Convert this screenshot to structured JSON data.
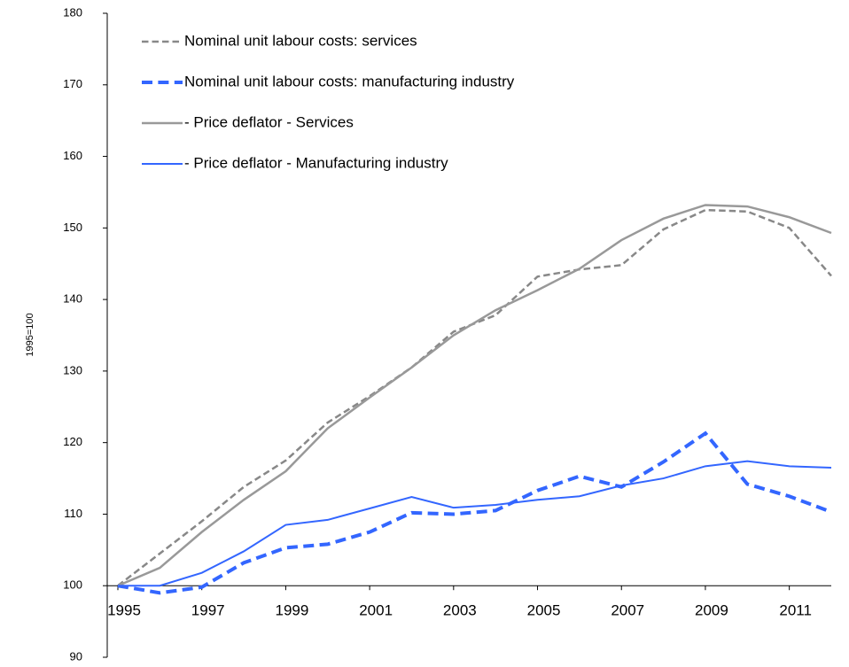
{
  "chart_data": {
    "type": "line",
    "y_label": "1995=100",
    "xlim": [
      1995,
      2012
    ],
    "xticks": [
      1995,
      1997,
      1999,
      2001,
      2003,
      2005,
      2007,
      2009,
      2011
    ],
    "ylim": [
      90,
      180
    ],
    "yticks": [
      90,
      100,
      110,
      120,
      130,
      140,
      150,
      160,
      170,
      180
    ],
    "x_axis_crosses": 100,
    "legend": "top-left",
    "x": [
      1995,
      1996,
      1997,
      1998,
      1999,
      2000,
      2001,
      2002,
      2003,
      2004,
      2005,
      2006,
      2007,
      2008,
      2009,
      2010,
      2011,
      2012
    ],
    "series": [
      {
        "name": "Nominal unit labour costs: services",
        "color": "#888888",
        "dashed": true,
        "width": 2.5,
        "values": [
          100,
          104.5,
          109,
          113.8,
          117.5,
          122.8,
          126.5,
          130.5,
          135.5,
          137.8,
          143.2,
          144.2,
          144.8,
          149.8,
          152.5,
          152.3,
          150,
          143.3
        ]
      },
      {
        "name": "Nominal unit labour costs: manufacturing industry",
        "color": "#3366ff",
        "dashed": true,
        "width": 4,
        "values": [
          100,
          99,
          99.8,
          103.2,
          105.3,
          105.8,
          107.5,
          110.2,
          110,
          110.5,
          113.3,
          115.3,
          113.8,
          117.3,
          121.3,
          114.2,
          112.5,
          110.3
        ]
      },
      {
        "name": "- Price deflator - Services",
        "color": "#999999",
        "dashed": false,
        "width": 2.5,
        "values": [
          100,
          102.5,
          107.5,
          112,
          116,
          122,
          126.3,
          130.5,
          135,
          138.5,
          141.3,
          144.3,
          148.3,
          151.3,
          153.2,
          153,
          151.5,
          149.3
        ]
      },
      {
        "name": "- Price deflator - Manufacturing industry",
        "color": "#3366ff",
        "dashed": false,
        "width": 2,
        "values": [
          100,
          100,
          101.8,
          104.8,
          108.5,
          109.2,
          110.8,
          112.4,
          110.9,
          111.3,
          112,
          112.5,
          114,
          115,
          116.7,
          117.4,
          116.7,
          116.5
        ]
      }
    ]
  }
}
